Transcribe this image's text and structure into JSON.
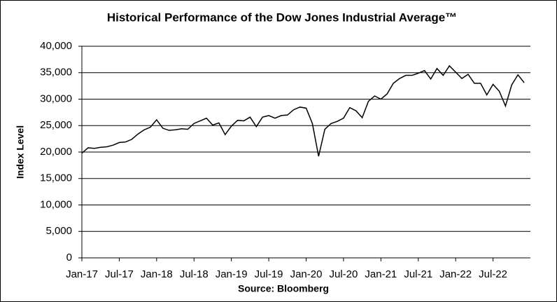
{
  "chart_data": {
    "type": "line",
    "title": "Historical Performance of the Dow Jones Industrial Average™",
    "y_label": "Index Level",
    "x_label": "Source: Bloomberg",
    "x": [
      "2017-01",
      "2017-02",
      "2017-03",
      "2017-04",
      "2017-05",
      "2017-06",
      "2017-07",
      "2017-08",
      "2017-09",
      "2017-10",
      "2017-11",
      "2017-12",
      "2018-01",
      "2018-02",
      "2018-03",
      "2018-04",
      "2018-05",
      "2018-06",
      "2018-07",
      "2018-08",
      "2018-09",
      "2018-10",
      "2018-11",
      "2018-12",
      "2019-01",
      "2019-02",
      "2019-03",
      "2019-04",
      "2019-05",
      "2019-06",
      "2019-07",
      "2019-08",
      "2019-09",
      "2019-10",
      "2019-11",
      "2019-12",
      "2020-01",
      "2020-02",
      "2020-03",
      "2020-04",
      "2020-05",
      "2020-06",
      "2020-07",
      "2020-08",
      "2020-09",
      "2020-10",
      "2020-11",
      "2020-12",
      "2021-01",
      "2021-02",
      "2021-03",
      "2021-04",
      "2021-05",
      "2021-06",
      "2021-07",
      "2021-08",
      "2021-09",
      "2021-10",
      "2021-11",
      "2021-12",
      "2022-01",
      "2022-02",
      "2022-03",
      "2022-04",
      "2022-05",
      "2022-06",
      "2022-07",
      "2022-08",
      "2022-09",
      "2022-10",
      "2022-11",
      "2022-12"
    ],
    "series": [
      {
        "name": "Dow Jones Industrial Average",
        "color": "#000000",
        "values": [
          19800,
          20800,
          20700,
          20900,
          21000,
          21300,
          21800,
          21900,
          22400,
          23400,
          24200,
          24700,
          26100,
          24500,
          24100,
          24200,
          24400,
          24300,
          25400,
          25900,
          26400,
          25100,
          25500,
          23300,
          24900,
          26000,
          25900,
          26600,
          24800,
          26600,
          26900,
          26400,
          26900,
          27000,
          28000,
          28500,
          28300,
          25400,
          19200,
          24300,
          25400,
          25800,
          26400,
          28400,
          27800,
          26500,
          29600,
          30600,
          30000,
          31000,
          33000,
          33900,
          34500,
          34500,
          34900,
          35400,
          33800,
          35800,
          34500,
          36300,
          35100,
          33900,
          34700,
          33000,
          33000,
          30800,
          32800,
          31500,
          28700,
          32700,
          34600,
          33100
        ]
      }
    ],
    "xlim": [
      "2017-01",
      "2023-01"
    ],
    "xticks": [
      {
        "value": "2017-01",
        "label": "Jan-17"
      },
      {
        "value": "2017-07",
        "label": "Jul-17"
      },
      {
        "value": "2018-01",
        "label": "Jan-18"
      },
      {
        "value": "2018-07",
        "label": "Jul-18"
      },
      {
        "value": "2019-01",
        "label": "Jan-19"
      },
      {
        "value": "2019-07",
        "label": "Jul-19"
      },
      {
        "value": "2020-01",
        "label": "Jan-20"
      },
      {
        "value": "2020-07",
        "label": "Jul-20"
      },
      {
        "value": "2021-01",
        "label": "Jan-21"
      },
      {
        "value": "2021-07",
        "label": "Jul-21"
      },
      {
        "value": "2022-01",
        "label": "Jan-22"
      },
      {
        "value": "2022-07",
        "label": "Jul-22"
      }
    ],
    "ylim": [
      0,
      40000
    ],
    "yticks": [
      0,
      {
        "value": 5000,
        "label": "5,000"
      },
      {
        "value": 10000,
        "label": "10,000"
      },
      {
        "value": 15000,
        "label": "15,000"
      },
      {
        "value": 20000,
        "label": "20,000"
      },
      {
        "value": 25000,
        "label": "25,000"
      },
      {
        "value": 30000,
        "label": "30,000"
      },
      {
        "value": 35000,
        "label": "35,000"
      },
      {
        "value": 40000,
        "label": "40,000"
      }
    ],
    "grid": true
  }
}
